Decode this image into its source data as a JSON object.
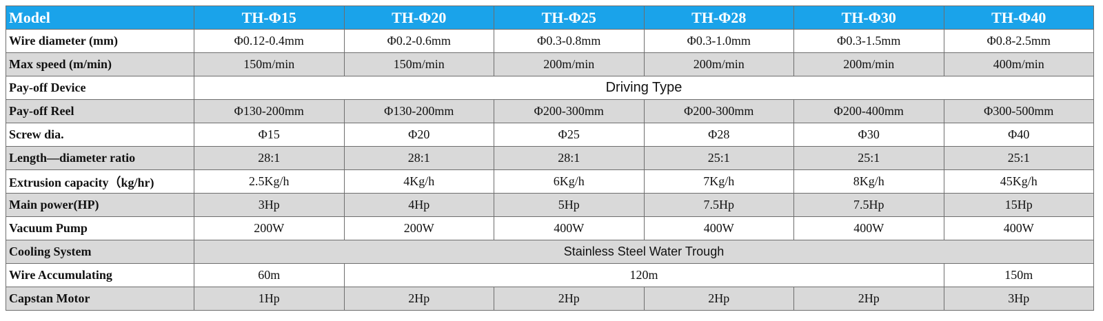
{
  "table": {
    "headers": [
      "Model",
      "TH-Φ15",
      "TH-Φ20",
      "TH-Φ25",
      "TH-Φ28",
      "TH-Φ30",
      "TH-Φ40"
    ],
    "rows": {
      "wire_diameter": {
        "label": "Wire diameter (mm)",
        "values": [
          "Φ0.12-0.4mm",
          "Φ0.2-0.6mm",
          "Φ0.3-0.8mm",
          "Φ0.3-1.0mm",
          "Φ0.3-1.5mm",
          "Φ0.8-2.5mm"
        ]
      },
      "max_speed": {
        "label": "Max speed (m/min)",
        "values": [
          "150m/min",
          "150m/min",
          "200m/min",
          "200m/min",
          "200m/min",
          "400m/min"
        ]
      },
      "payoff_device": {
        "label": "Pay-off Device",
        "value": "Driving Type"
      },
      "payoff_reel": {
        "label": "Pay-off Reel",
        "values": [
          "Φ130-200mm",
          "Φ130-200mm",
          "Φ200-300mm",
          "Φ200-300mm",
          "Φ200-400mm",
          "Φ300-500mm"
        ]
      },
      "screw_dia": {
        "label": "Screw dia.",
        "values": [
          "Φ15",
          "Φ20",
          "Φ25",
          "Φ28",
          "Φ30",
          "Φ40"
        ]
      },
      "ld_ratio": {
        "label": "Length—diameter ratio",
        "values": [
          "28:1",
          "28:1",
          "28:1",
          "25:1",
          "25:1",
          "25:1"
        ]
      },
      "extrusion": {
        "label": "Extrusion capacity（kg/hr)",
        "values": [
          "2.5Kg/h",
          "4Kg/h",
          "6Kg/h",
          "7Kg/h",
          "8Kg/h",
          "45Kg/h"
        ]
      },
      "main_power": {
        "label": "Main power(HP)",
        "values": [
          "3Hp",
          "4Hp",
          "5Hp",
          "7.5Hp",
          "7.5Hp",
          "15Hp"
        ]
      },
      "vacuum_pump": {
        "label": "Vacuum Pump",
        "values": [
          "200W",
          "200W",
          "400W",
          "400W",
          "400W",
          "400W"
        ]
      },
      "cooling": {
        "label": "Cooling System",
        "value": "Stainless Steel Water Trough"
      },
      "accumulating": {
        "label": "Wire Accumulating",
        "first": "60m",
        "middle": "120m",
        "last": "150m"
      },
      "capstan": {
        "label": "Capstan Motor",
        "values": [
          "1Hp",
          "2Hp",
          "2Hp",
          "2Hp",
          "2Hp",
          "3Hp"
        ]
      }
    }
  }
}
